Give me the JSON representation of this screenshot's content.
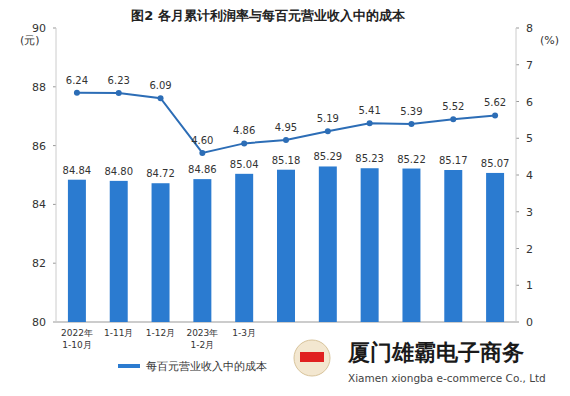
{
  "chart_data": {
    "type": "bar",
    "title": "图2 各月累计利润率与每百元营业收入中的成本",
    "ylabel": "(元)",
    "y2label": "(%)",
    "categories": [
      "2022年\n1-10月",
      "1-11月",
      "1-12月",
      "2023年\n1-2月",
      "1-3月",
      null,
      null,
      null,
      null,
      null,
      null
    ],
    "series": [
      {
        "name": "每百元营业收入中的成本",
        "type": "bar",
        "color": "#2b7bd0",
        "values": [
          84.84,
          84.8,
          84.72,
          84.86,
          85.04,
          85.18,
          85.29,
          85.23,
          85.22,
          85.17,
          85.07
        ],
        "value_labels": [
          "84.84",
          "84.80",
          "84.72",
          "84.86",
          "85.04",
          "85.18",
          "85.29",
          "85.23",
          "85.22",
          "85.17",
          "85.07"
        ]
      },
      {
        "type": "line",
        "axis": "y2",
        "color": "#2c6db6",
        "marker": "circle",
        "values": [
          6.24,
          6.23,
          6.09,
          4.6,
          4.86,
          4.95,
          5.19,
          5.41,
          5.39,
          5.52,
          5.62
        ],
        "value_labels": [
          "6.24",
          "6.23",
          "6.09",
          "4.60",
          "4.86",
          "4.95",
          "5.19",
          "5.41",
          "5.39",
          "5.52",
          "5.62"
        ]
      }
    ],
    "ylim": [
      80,
      90
    ],
    "yticks": [
      80,
      82,
      84,
      86,
      88,
      90
    ],
    "y2lim": [
      0,
      8
    ],
    "y2ticks": [
      0,
      1,
      2,
      3,
      4,
      5,
      6,
      7,
      8
    ],
    "data_labels": true,
    "grid": false,
    "legend": "bottom",
    "annotations": [
      "厦门雄霸电子商务",
      "Xiamen xiongba e-commerce Co., Ltd"
    ]
  }
}
